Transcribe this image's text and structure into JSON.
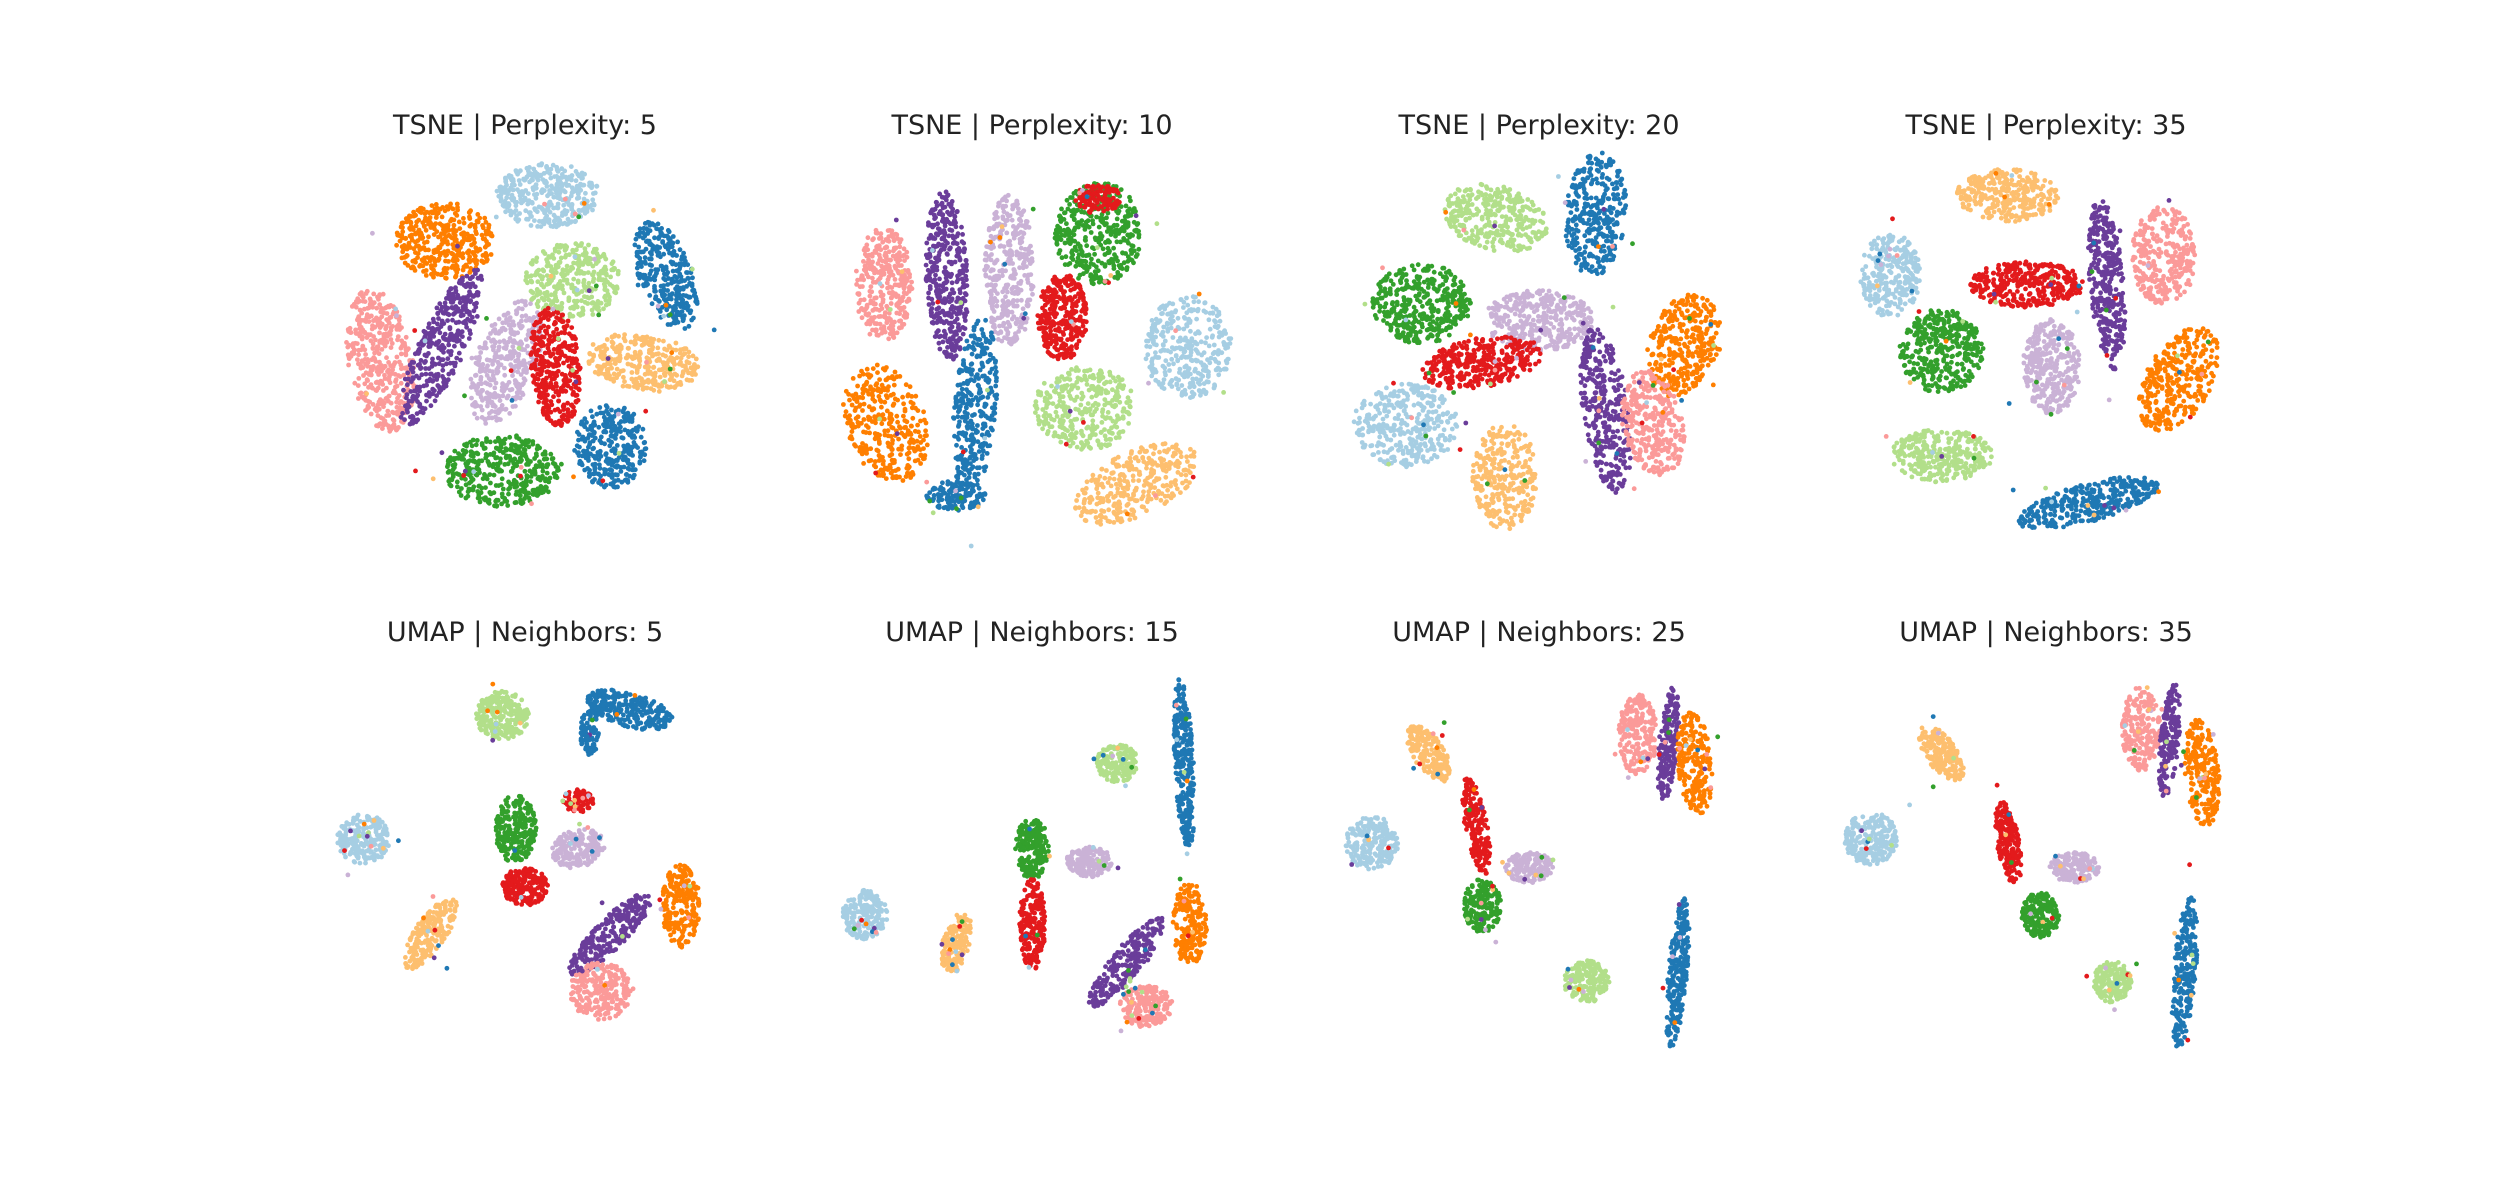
{
  "figure": {
    "background": "#ffffff"
  },
  "palette": {
    "c0": "#a6cee3",
    "c1": "#1f78b4",
    "c2": "#b2df8a",
    "c3": "#33a02c",
    "c4": "#fb9a99",
    "c5": "#e31a1c",
    "c6": "#fdbf6f",
    "c7": "#ff7f00",
    "c8": "#cab2d6",
    "c9": "#6a3d9a"
  },
  "chart_data": [
    {
      "type": "scatter",
      "title": "TSNE | Perplexity: 5",
      "axes": "off",
      "grid": false,
      "legend": "none",
      "clusters": [
        {
          "color": "c4",
          "x": -0.76,
          "y": -0.05,
          "rx": 0.17,
          "ry": 0.38,
          "angle": 10,
          "n": 420
        },
        {
          "color": "c7",
          "x": -0.42,
          "y": 0.58,
          "rx": 0.26,
          "ry": 0.2,
          "angle": 0,
          "n": 380
        },
        {
          "color": "c0",
          "x": 0.12,
          "y": 0.82,
          "rx": 0.27,
          "ry": 0.17,
          "angle": 0,
          "n": 350
        },
        {
          "color": "c1",
          "x": 0.74,
          "y": 0.4,
          "rx": 0.14,
          "ry": 0.3,
          "angle": 20,
          "n": 300
        },
        {
          "color": "c2",
          "x": 0.25,
          "y": 0.37,
          "rx": 0.25,
          "ry": 0.2,
          "angle": 0,
          "n": 330
        },
        {
          "color": "c9",
          "x": -0.44,
          "y": 0.02,
          "rx": 0.12,
          "ry": 0.45,
          "angle": -25,
          "n": 360
        },
        {
          "color": "c8",
          "x": -0.1,
          "y": -0.06,
          "rx": 0.16,
          "ry": 0.34,
          "angle": -20,
          "n": 360
        },
        {
          "color": "c5",
          "x": 0.16,
          "y": -0.08,
          "rx": 0.13,
          "ry": 0.32,
          "angle": 5,
          "n": 360
        },
        {
          "color": "c6",
          "x": 0.62,
          "y": -0.06,
          "rx": 0.3,
          "ry": 0.15,
          "angle": -8,
          "n": 320
        },
        {
          "color": "c3",
          "x": -0.12,
          "y": -0.63,
          "rx": 0.3,
          "ry": 0.19,
          "angle": 0,
          "n": 380
        },
        {
          "color": "c1",
          "x": 0.45,
          "y": -0.5,
          "rx": 0.19,
          "ry": 0.22,
          "angle": 0,
          "n": 300
        }
      ]
    },
    {
      "type": "scatter",
      "title": "TSNE | Perplexity: 10",
      "axes": "off",
      "grid": false,
      "legend": "none",
      "clusters": [
        {
          "color": "c4",
          "x": -0.78,
          "y": 0.35,
          "rx": 0.15,
          "ry": 0.3,
          "angle": 0,
          "n": 330
        },
        {
          "color": "c9",
          "x": -0.45,
          "y": 0.4,
          "rx": 0.11,
          "ry": 0.45,
          "angle": 3,
          "n": 380
        },
        {
          "color": "c8",
          "x": -0.12,
          "y": 0.42,
          "rx": 0.13,
          "ry": 0.4,
          "angle": 0,
          "n": 350
        },
        {
          "color": "c3",
          "x": 0.35,
          "y": 0.62,
          "rx": 0.23,
          "ry": 0.27,
          "angle": 0,
          "n": 380
        },
        {
          "color": "c5",
          "x": 0.35,
          "y": 0.8,
          "rx": 0.12,
          "ry": 0.08,
          "angle": 0,
          "n": 110
        },
        {
          "color": "c5",
          "x": 0.16,
          "y": 0.18,
          "rx": 0.13,
          "ry": 0.23,
          "angle": 0,
          "n": 300
        },
        {
          "color": "c0",
          "x": 0.82,
          "y": 0.02,
          "rx": 0.23,
          "ry": 0.27,
          "angle": 0,
          "n": 330
        },
        {
          "color": "c7",
          "x": -0.77,
          "y": -0.38,
          "rx": 0.21,
          "ry": 0.32,
          "angle": 20,
          "n": 330
        },
        {
          "color": "c1",
          "x": -0.3,
          "y": -0.3,
          "rx": 0.11,
          "ry": 0.47,
          "angle": -5,
          "n": 330
        },
        {
          "color": "c1",
          "x": -0.4,
          "y": -0.76,
          "rx": 0.16,
          "ry": 0.08,
          "angle": 0,
          "n": 130
        },
        {
          "color": "c2",
          "x": 0.28,
          "y": -0.3,
          "rx": 0.27,
          "ry": 0.22,
          "angle": 0,
          "n": 330
        },
        {
          "color": "c6",
          "x": 0.55,
          "y": -0.7,
          "rx": 0.35,
          "ry": 0.17,
          "angle": 25,
          "n": 320
        }
      ]
    },
    {
      "type": "scatter",
      "title": "TSNE | Perplexity: 20",
      "axes": "off",
      "grid": false,
      "legend": "none",
      "clusters": [
        {
          "color": "c2",
          "x": -0.23,
          "y": 0.7,
          "rx": 0.28,
          "ry": 0.17,
          "angle": -15,
          "n": 330
        },
        {
          "color": "c1",
          "x": 0.3,
          "y": 0.72,
          "rx": 0.16,
          "ry": 0.33,
          "angle": -5,
          "n": 330
        },
        {
          "color": "c3",
          "x": -0.62,
          "y": 0.25,
          "rx": 0.26,
          "ry": 0.21,
          "angle": 0,
          "n": 380
        },
        {
          "color": "c8",
          "x": 0.0,
          "y": 0.16,
          "rx": 0.29,
          "ry": 0.16,
          "angle": 0,
          "n": 350
        },
        {
          "color": "c5",
          "x": -0.3,
          "y": -0.06,
          "rx": 0.32,
          "ry": 0.13,
          "angle": 10,
          "n": 350
        },
        {
          "color": "c7",
          "x": 0.76,
          "y": 0.03,
          "rx": 0.18,
          "ry": 0.28,
          "angle": -20,
          "n": 330
        },
        {
          "color": "c0",
          "x": -0.7,
          "y": -0.39,
          "rx": 0.28,
          "ry": 0.22,
          "angle": 0,
          "n": 350
        },
        {
          "color": "c9",
          "x": 0.35,
          "y": -0.31,
          "rx": 0.12,
          "ry": 0.44,
          "angle": 8,
          "n": 330
        },
        {
          "color": "c4",
          "x": 0.6,
          "y": -0.38,
          "rx": 0.16,
          "ry": 0.28,
          "angle": 12,
          "n": 300
        },
        {
          "color": "c6",
          "x": -0.18,
          "y": -0.66,
          "rx": 0.17,
          "ry": 0.28,
          "angle": 0,
          "n": 300
        }
      ]
    },
    {
      "type": "scatter",
      "title": "TSNE | Perplexity: 35",
      "axes": "off",
      "grid": false,
      "legend": "none",
      "clusters": [
        {
          "color": "c6",
          "x": -0.2,
          "y": 0.82,
          "rx": 0.27,
          "ry": 0.14,
          "angle": 0,
          "n": 300
        },
        {
          "color": "c0",
          "x": -0.82,
          "y": 0.4,
          "rx": 0.16,
          "ry": 0.22,
          "angle": 0,
          "n": 270
        },
        {
          "color": "c5",
          "x": -0.1,
          "y": 0.35,
          "rx": 0.3,
          "ry": 0.12,
          "angle": 0,
          "n": 330
        },
        {
          "color": "c9",
          "x": 0.32,
          "y": 0.35,
          "rx": 0.09,
          "ry": 0.45,
          "angle": 5,
          "n": 330
        },
        {
          "color": "c4",
          "x": 0.62,
          "y": 0.5,
          "rx": 0.17,
          "ry": 0.26,
          "angle": 0,
          "n": 300
        },
        {
          "color": "c3",
          "x": -0.55,
          "y": 0.0,
          "rx": 0.22,
          "ry": 0.22,
          "angle": 0,
          "n": 370
        },
        {
          "color": "c8",
          "x": 0.03,
          "y": -0.08,
          "rx": 0.15,
          "ry": 0.25,
          "angle": 0,
          "n": 320
        },
        {
          "color": "c7",
          "x": 0.7,
          "y": -0.15,
          "rx": 0.17,
          "ry": 0.3,
          "angle": -30,
          "n": 330
        },
        {
          "color": "c2",
          "x": -0.55,
          "y": -0.55,
          "rx": 0.27,
          "ry": 0.14,
          "angle": 0,
          "n": 300
        },
        {
          "color": "c1",
          "x": 0.22,
          "y": -0.8,
          "rx": 0.38,
          "ry": 0.1,
          "angle": 15,
          "n": 350
        }
      ]
    },
    {
      "type": "scatter",
      "title": "UMAP | Neighbors: 5",
      "axes": "off",
      "grid": false,
      "legend": "none",
      "clusters": [
        {
          "color": "c2",
          "x": -0.12,
          "y": 0.75,
          "rx": 0.14,
          "ry": 0.13,
          "angle": 0,
          "n": 250
        },
        {
          "color": "c1",
          "x": 0.55,
          "y": 0.78,
          "rx": 0.23,
          "ry": 0.09,
          "angle": -15,
          "n": 260
        },
        {
          "color": "c1",
          "x": 0.34,
          "y": 0.66,
          "rx": 0.05,
          "ry": 0.12,
          "angle": 0,
          "n": 80
        },
        {
          "color": "c0",
          "x": -0.85,
          "y": 0.1,
          "rx": 0.14,
          "ry": 0.13,
          "angle": 0,
          "n": 220
        },
        {
          "color": "c3",
          "x": -0.05,
          "y": 0.15,
          "rx": 0.11,
          "ry": 0.18,
          "angle": 0,
          "n": 240
        },
        {
          "color": "c5",
          "x": 0.28,
          "y": 0.3,
          "rx": 0.08,
          "ry": 0.06,
          "angle": 0,
          "n": 80
        },
        {
          "color": "c5",
          "x": 0.0,
          "y": -0.15,
          "rx": 0.12,
          "ry": 0.1,
          "angle": 0,
          "n": 200
        },
        {
          "color": "c8",
          "x": 0.28,
          "y": 0.05,
          "rx": 0.14,
          "ry": 0.1,
          "angle": 15,
          "n": 200
        },
        {
          "color": "c6",
          "x": -0.5,
          "y": -0.4,
          "rx": 0.08,
          "ry": 0.22,
          "angle": -35,
          "n": 220
        },
        {
          "color": "c9",
          "x": 0.45,
          "y": -0.4,
          "rx": 0.08,
          "ry": 0.3,
          "angle": -45,
          "n": 240
        },
        {
          "color": "c4",
          "x": 0.4,
          "y": -0.7,
          "rx": 0.17,
          "ry": 0.15,
          "angle": 0,
          "n": 250
        },
        {
          "color": "c7",
          "x": 0.82,
          "y": -0.25,
          "rx": 0.1,
          "ry": 0.22,
          "angle": 0,
          "n": 230
        }
      ]
    },
    {
      "type": "scatter",
      "title": "UMAP | Neighbors: 15",
      "axes": "off",
      "grid": false,
      "legend": "none",
      "clusters": [
        {
          "color": "c1",
          "x": 0.8,
          "y": 0.5,
          "rx": 0.05,
          "ry": 0.45,
          "angle": 3,
          "n": 300
        },
        {
          "color": "c2",
          "x": 0.45,
          "y": 0.5,
          "rx": 0.11,
          "ry": 0.1,
          "angle": 0,
          "n": 180
        },
        {
          "color": "c3",
          "x": 0.0,
          "y": 0.05,
          "rx": 0.09,
          "ry": 0.16,
          "angle": 0,
          "n": 200
        },
        {
          "color": "c5",
          "x": 0.0,
          "y": -0.35,
          "rx": 0.07,
          "ry": 0.24,
          "angle": 0,
          "n": 200
        },
        {
          "color": "c8",
          "x": 0.3,
          "y": -0.02,
          "rx": 0.12,
          "ry": 0.08,
          "angle": 0,
          "n": 170
        },
        {
          "color": "c0",
          "x": -0.88,
          "y": -0.3,
          "rx": 0.12,
          "ry": 0.13,
          "angle": 0,
          "n": 200
        },
        {
          "color": "c6",
          "x": -0.4,
          "y": -0.45,
          "rx": 0.07,
          "ry": 0.17,
          "angle": -15,
          "n": 170
        },
        {
          "color": "c9",
          "x": 0.5,
          "y": -0.55,
          "rx": 0.08,
          "ry": 0.3,
          "angle": -40,
          "n": 220
        },
        {
          "color": "c4",
          "x": 0.6,
          "y": -0.78,
          "rx": 0.14,
          "ry": 0.11,
          "angle": 0,
          "n": 200
        },
        {
          "color": "c7",
          "x": 0.83,
          "y": -0.35,
          "rx": 0.09,
          "ry": 0.22,
          "angle": 0,
          "n": 200
        }
      ]
    },
    {
      "type": "scatter",
      "title": "UMAP | Neighbors: 25",
      "axes": "off",
      "grid": false,
      "legend": "none",
      "clusters": [
        {
          "color": "c6",
          "x": -0.58,
          "y": 0.55,
          "rx": 0.08,
          "ry": 0.17,
          "angle": 35,
          "n": 200
        },
        {
          "color": "c4",
          "x": 0.52,
          "y": 0.65,
          "rx": 0.1,
          "ry": 0.22,
          "angle": 0,
          "n": 220
        },
        {
          "color": "c9",
          "x": 0.68,
          "y": 0.6,
          "rx": 0.05,
          "ry": 0.3,
          "angle": -5,
          "n": 180
        },
        {
          "color": "c7",
          "x": 0.82,
          "y": 0.5,
          "rx": 0.09,
          "ry": 0.27,
          "angle": 5,
          "n": 220
        },
        {
          "color": "c0",
          "x": -0.88,
          "y": 0.08,
          "rx": 0.14,
          "ry": 0.14,
          "angle": 0,
          "n": 220
        },
        {
          "color": "c5",
          "x": -0.33,
          "y": 0.17,
          "rx": 0.06,
          "ry": 0.26,
          "angle": 10,
          "n": 200
        },
        {
          "color": "c8",
          "x": -0.05,
          "y": -0.05,
          "rx": 0.13,
          "ry": 0.08,
          "angle": 0,
          "n": 170
        },
        {
          "color": "c3",
          "x": -0.3,
          "y": -0.25,
          "rx": 0.1,
          "ry": 0.14,
          "angle": 0,
          "n": 190
        },
        {
          "color": "c2",
          "x": 0.25,
          "y": -0.65,
          "rx": 0.12,
          "ry": 0.11,
          "angle": 0,
          "n": 180
        },
        {
          "color": "c1",
          "x": 0.73,
          "y": -0.6,
          "rx": 0.05,
          "ry": 0.4,
          "angle": -5,
          "n": 260
        }
      ]
    },
    {
      "type": "scatter",
      "title": "UMAP | Neighbors: 35",
      "axes": "off",
      "grid": false,
      "legend": "none",
      "clusters": [
        {
          "color": "c6",
          "x": -0.55,
          "y": 0.55,
          "rx": 0.08,
          "ry": 0.17,
          "angle": 35,
          "n": 200
        },
        {
          "color": "c4",
          "x": 0.5,
          "y": 0.68,
          "rx": 0.1,
          "ry": 0.22,
          "angle": 0,
          "n": 220
        },
        {
          "color": "c9",
          "x": 0.65,
          "y": 0.62,
          "rx": 0.05,
          "ry": 0.3,
          "angle": -5,
          "n": 180
        },
        {
          "color": "c7",
          "x": 0.82,
          "y": 0.45,
          "rx": 0.09,
          "ry": 0.28,
          "angle": 5,
          "n": 220
        },
        {
          "color": "c0",
          "x": -0.92,
          "y": 0.1,
          "rx": 0.14,
          "ry": 0.14,
          "angle": 0,
          "n": 220
        },
        {
          "color": "c5",
          "x": -0.2,
          "y": 0.08,
          "rx": 0.06,
          "ry": 0.22,
          "angle": 10,
          "n": 200
        },
        {
          "color": "c8",
          "x": 0.15,
          "y": -0.05,
          "rx": 0.13,
          "ry": 0.08,
          "angle": 0,
          "n": 170
        },
        {
          "color": "c3",
          "x": -0.03,
          "y": -0.3,
          "rx": 0.1,
          "ry": 0.12,
          "angle": 0,
          "n": 190
        },
        {
          "color": "c2",
          "x": 0.35,
          "y": -0.65,
          "rx": 0.1,
          "ry": 0.11,
          "angle": 0,
          "n": 180
        },
        {
          "color": "c1",
          "x": 0.73,
          "y": -0.6,
          "rx": 0.06,
          "ry": 0.4,
          "angle": -5,
          "n": 260
        }
      ]
    }
  ]
}
